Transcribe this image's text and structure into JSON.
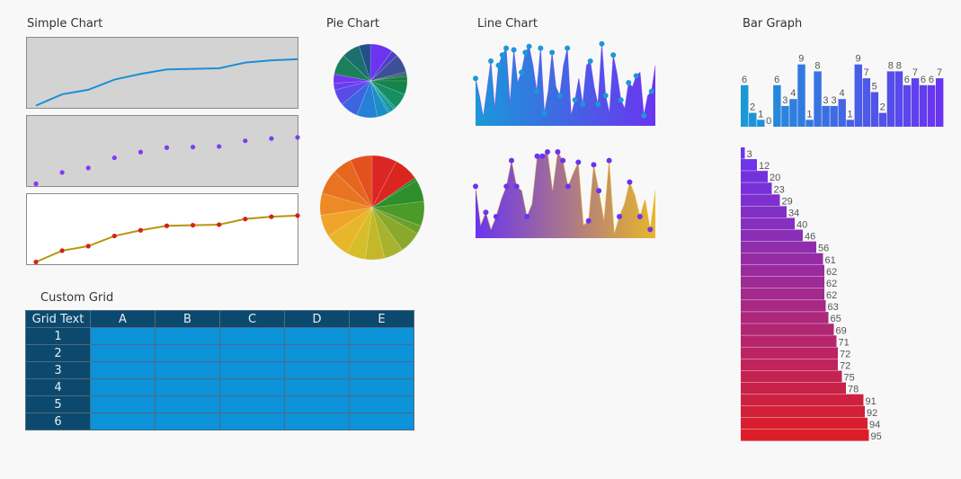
{
  "titles": {
    "simple": "Simple Chart",
    "pie": "Pie Chart",
    "line": "Line Chart",
    "bar": "Bar Graph",
    "grid": "Custom Grid"
  },
  "grid": {
    "corner": "Grid Text",
    "columns": [
      "A",
      "B",
      "C",
      "D",
      "E"
    ],
    "rows": [
      "1",
      "2",
      "3",
      "4",
      "5",
      "6"
    ],
    "colors": {
      "header": "#0b4a6e",
      "cell": "#0c93d9"
    }
  },
  "chart_data": [
    {
      "id": "simple-line",
      "type": "line",
      "title": "Simple Chart",
      "values": [
        0,
        10,
        14,
        23,
        28,
        32,
        32.5,
        33,
        38,
        40,
        41
      ],
      "ylim": [
        -2,
        60
      ],
      "style": {
        "background": "#d3d3d3",
        "line": "#1a8fd6",
        "markers": false
      }
    },
    {
      "id": "simple-scatter",
      "type": "scatter",
      "values": [
        0,
        10,
        14,
        23,
        28,
        32,
        32.5,
        33,
        38,
        40,
        41
      ],
      "ylim": [
        -2,
        60
      ],
      "style": {
        "background": "#d3d3d3",
        "marker": "#7a3ff0",
        "line": false
      }
    },
    {
      "id": "simple-line-markers",
      "type": "line",
      "values": [
        0,
        10,
        14,
        23,
        28,
        32,
        32.5,
        33,
        38,
        40,
        41
      ],
      "ylim": [
        -2,
        60
      ],
      "style": {
        "background": "#ffffff",
        "line": "#b8960a",
        "marker": "#d42020"
      }
    },
    {
      "id": "pie-1",
      "type": "pie",
      "title": "Pie Chart",
      "values": [
        10,
        3,
        8,
        1,
        1,
        2,
        6,
        7,
        1,
        2,
        1,
        5,
        9,
        8,
        7,
        3,
        4,
        9,
        8,
        5
      ],
      "colors": [
        "#6a34f0",
        "#4f3ec8",
        "#3d4f96",
        "#2e5e70",
        "#1f6b53",
        "#1a7a3e",
        "#15844a",
        "#168f64",
        "#17977e",
        "#1499a0",
        "#1497b0",
        "#1a8fc4",
        "#2580d6",
        "#3b66e0",
        "#5a4ae8",
        "#6a3cf0",
        "#7036f2",
        "#1b7f5a",
        "#1b6f6d",
        "#214f88"
      ]
    },
    {
      "id": "pie-2",
      "type": "pie",
      "values": [
        9,
        9,
        1,
        8,
        9,
        3,
        8,
        7,
        7,
        7,
        9,
        8,
        8,
        9,
        7,
        8
      ],
      "colors": [
        "#dc2525",
        "#d9271f",
        "#1f8a2e",
        "#2e8f2a",
        "#4b9a2a",
        "#6da02a",
        "#8aa82c",
        "#a8b22d",
        "#c4b82a",
        "#d6be2a",
        "#e8b62a",
        "#f0a52a",
        "#ec8a26",
        "#e87422",
        "#e6661f",
        "#e2521f"
      ]
    },
    {
      "id": "line-1",
      "type": "area",
      "title": "Line Chart",
      "values": [
        55,
        35,
        10,
        42,
        75,
        20,
        70,
        82,
        90,
        25,
        88,
        50,
        62,
        85,
        92,
        70,
        40,
        90,
        15,
        40,
        85,
        45,
        35,
        70,
        90,
        12,
        30,
        55,
        25,
        70,
        75,
        45,
        25,
        95,
        35,
        15,
        82,
        60,
        30,
        20,
        50,
        45,
        58,
        62,
        12,
        35,
        40,
        70
      ],
      "ylim": [
        0,
        100
      ],
      "gradient": [
        "#1a98d8",
        "#6a34f0"
      ],
      "marker": "#1a98d8"
    },
    {
      "id": "line-2",
      "type": "area",
      "values": [
        60,
        15,
        30,
        10,
        25,
        45,
        60,
        90,
        60,
        55,
        25,
        40,
        95,
        95,
        100,
        55,
        100,
        90,
        60,
        75,
        88,
        15,
        20,
        85,
        55,
        20,
        90,
        5,
        25,
        40,
        65,
        50,
        25,
        45,
        10,
        55
      ],
      "ylim": [
        0,
        100
      ],
      "gradient": [
        "#6a34f0",
        "#e8b62a"
      ],
      "marker": "#6a34f0"
    },
    {
      "id": "bar-vertical",
      "type": "bar",
      "title": "Bar Graph",
      "values": [
        6,
        2,
        1,
        0,
        6,
        3,
        4,
        9,
        1,
        8,
        3,
        3,
        4,
        1,
        9,
        7,
        5,
        2,
        8,
        8,
        6,
        7,
        6,
        6,
        7
      ],
      "ylim": [
        0,
        10
      ],
      "gradient": [
        "#1a98d8",
        "#6a34f0"
      ]
    },
    {
      "id": "bar-horizontal",
      "type": "bar",
      "orientation": "horizontal",
      "values": [
        3,
        12,
        20,
        23,
        29,
        34,
        40,
        46,
        56,
        61,
        62,
        62,
        62,
        63,
        65,
        69,
        71,
        72,
        72,
        75,
        78,
        91,
        92,
        94,
        95
      ],
      "xlim": [
        0,
        100
      ],
      "gradient": [
        "#6a34f0",
        "#dc1e28"
      ]
    }
  ]
}
